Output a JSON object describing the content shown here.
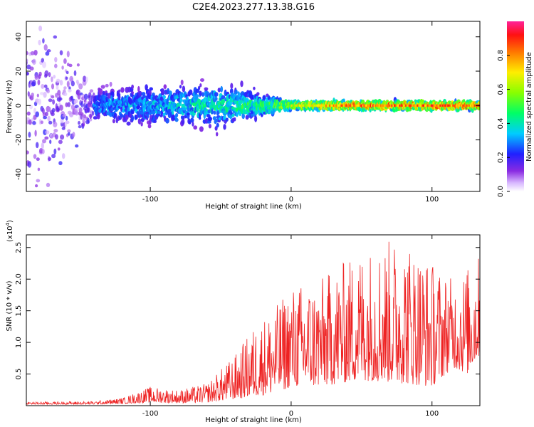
{
  "title": "C2E4.2023.277.13.38.G16",
  "chart_data": [
    {
      "type": "heatmap",
      "xlabel": "Height of straight line (km)",
      "ylabel": "Frequency (Hz)",
      "xlim": [
        -188,
        134
      ],
      "ylim": [
        -50,
        49
      ],
      "xticks": [
        -100,
        0,
        100
      ],
      "yticks": [
        -40,
        -20,
        0,
        20,
        40
      ],
      "colorbar": {
        "label": "Normalized spectral amplitude",
        "range": [
          0,
          1
        ],
        "ticks": [
          0.0,
          0.2,
          0.4,
          0.6,
          0.8
        ],
        "tick_labels": [
          "0.0",
          "0.2",
          "0.4",
          "0.6",
          "0.8"
        ]
      },
      "ridge": {
        "frequency_hz": 0,
        "description_points": [
          {
            "x": -188,
            "spread_hz": 45,
            "peak_amp": 0.15
          },
          {
            "x": -140,
            "spread_hz": 8,
            "peak_amp": 0.3
          },
          {
            "x": -50,
            "spread_hz": 10,
            "peak_amp": 0.45
          },
          {
            "x": -20,
            "spread_hz": 5,
            "peak_amp": 0.5
          },
          {
            "x": 0,
            "spread_hz": 2,
            "peak_amp": 0.7
          },
          {
            "x": 40,
            "spread_hz": 2,
            "peak_amp": 0.9
          },
          {
            "x": 134,
            "spread_hz": 2,
            "peak_amp": 0.9
          }
        ]
      }
    },
    {
      "type": "line",
      "xlabel": "Height of straight line (km)",
      "ylabel": "SNR (10 * v/v)",
      "y_multiplier": "(x10",
      "y_multiplier_exp": "4",
      "y_multiplier_close": ")",
      "xlim": [
        -188,
        134
      ],
      "ylim": [
        0,
        2.7
      ],
      "xticks": [
        -100,
        0,
        100
      ],
      "yticks": [
        0.5,
        1.0,
        1.5,
        2.0,
        2.5
      ],
      "ytick_labels": [
        "0.5",
        "1.0",
        "1.5",
        "2.0",
        "2.5"
      ],
      "color": "#ee2222",
      "envelope": [
        {
          "x": -188,
          "low": 0.02,
          "high": 0.06
        },
        {
          "x": -140,
          "low": 0.02,
          "high": 0.07
        },
        {
          "x": -120,
          "low": 0.03,
          "high": 0.12
        },
        {
          "x": -100,
          "low": 0.05,
          "high": 0.3
        },
        {
          "x": -80,
          "low": 0.04,
          "high": 0.25
        },
        {
          "x": -60,
          "low": 0.05,
          "high": 0.35
        },
        {
          "x": -40,
          "low": 0.1,
          "high": 0.8
        },
        {
          "x": -25,
          "low": 0.15,
          "high": 1.3
        },
        {
          "x": -10,
          "low": 0.2,
          "high": 1.6
        },
        {
          "x": 0,
          "low": 0.3,
          "high": 1.9
        },
        {
          "x": 20,
          "low": 0.3,
          "high": 2.0
        },
        {
          "x": 50,
          "low": 0.4,
          "high": 2.5
        },
        {
          "x": 80,
          "low": 0.35,
          "high": 2.7
        },
        {
          "x": 100,
          "low": 0.3,
          "high": 2.3
        },
        {
          "x": 115,
          "low": 0.6,
          "high": 2.0
        },
        {
          "x": 125,
          "low": 0.5,
          "high": 2.2
        },
        {
          "x": 134,
          "low": 0.8,
          "high": 2.4
        }
      ]
    }
  ]
}
